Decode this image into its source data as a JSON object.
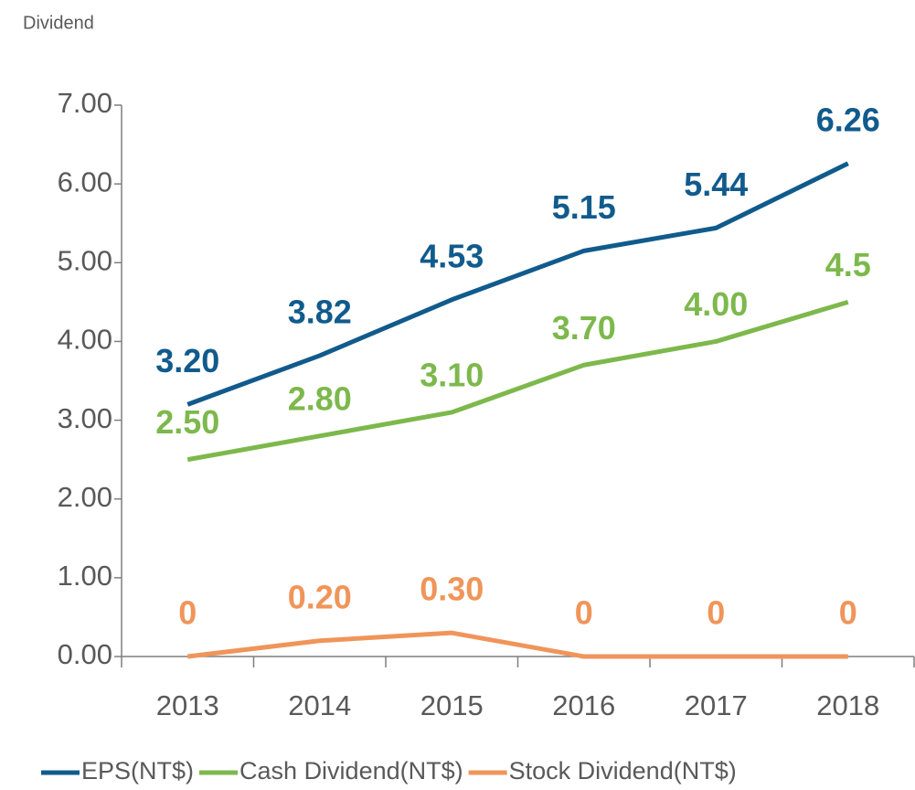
{
  "chart_data": {
    "type": "line",
    "title": "Dividend",
    "categories": [
      "2013",
      "2014",
      "2015",
      "2016",
      "2017",
      "2018"
    ],
    "series": [
      {
        "name": "EPS(NT$)",
        "color": "#115b8c",
        "values": [
          3.2,
          3.82,
          4.53,
          5.15,
          5.44,
          6.26
        ],
        "value_labels": [
          "3.20",
          "3.82",
          "4.53",
          "5.15",
          "5.44",
          "6.26"
        ]
      },
      {
        "name": "Cash Dividend(NT$)",
        "color": "#7db84c",
        "values": [
          2.5,
          2.8,
          3.1,
          3.7,
          4.0,
          4.5
        ],
        "value_labels": [
          "2.50",
          "2.80",
          "3.10",
          "3.70",
          "4.00",
          "4.5"
        ]
      },
      {
        "name": "Stock Dividend(NT$)",
        "color": "#f0955a",
        "values": [
          0,
          0.2,
          0.3,
          0,
          0,
          0
        ],
        "value_labels": [
          "0",
          "0.20",
          "0.30",
          "0",
          "0",
          "0"
        ]
      }
    ],
    "ylim": [
      0,
      7
    ],
    "yticks": [
      {
        "value": 0,
        "label": "0.00"
      },
      {
        "value": 1,
        "label": "1.00"
      },
      {
        "value": 2,
        "label": "2.00"
      },
      {
        "value": 3,
        "label": "3.00"
      },
      {
        "value": 4,
        "label": "4.00"
      },
      {
        "value": 5,
        "label": "5.00"
      },
      {
        "value": 6,
        "label": "6.00"
      },
      {
        "value": 7,
        "label": "7.00"
      }
    ],
    "legend": "bottom"
  }
}
